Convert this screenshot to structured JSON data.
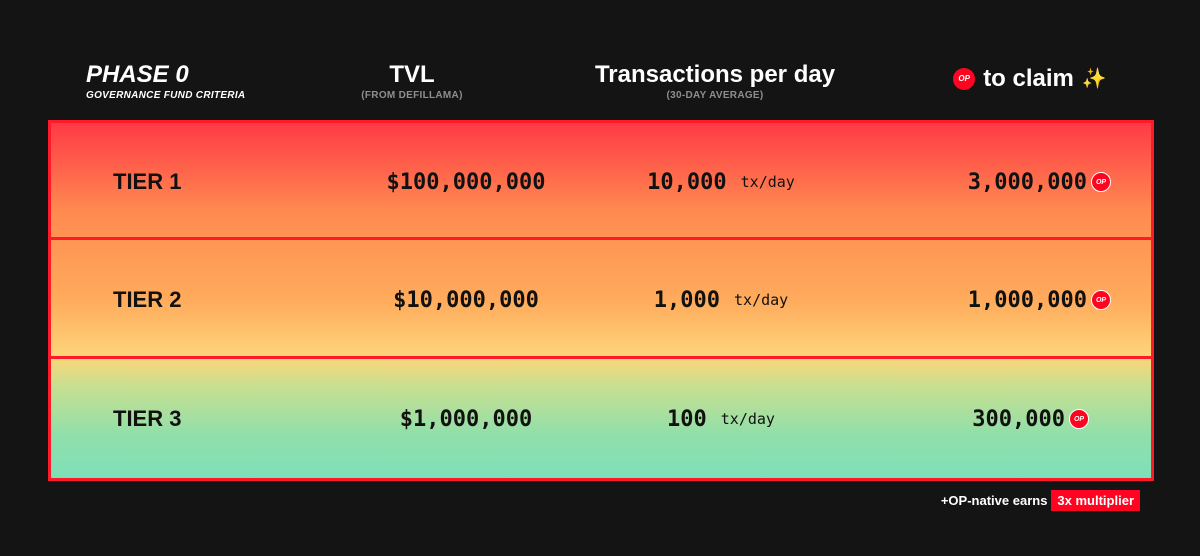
{
  "header": {
    "phase_title": "PHASE 0",
    "phase_subtitle": "GOVERNANCE FUND CRITERIA",
    "tvl_title": "TVL",
    "tvl_subtitle": "(FROM DEFILLAMA)",
    "tx_title": "Transactions per day",
    "tx_subtitle": "(30-DAY AVERAGE)",
    "claim_badge": "OP",
    "claim_title": "to claim",
    "claim_sparkle": "✨"
  },
  "tiers": [
    {
      "name": "TIER 1",
      "tvl": "$100,000,000",
      "tx": "10,000",
      "tx_unit": "tx/day",
      "claim": "3,000,000",
      "badge": "OP"
    },
    {
      "name": "TIER 2",
      "tvl": "$10,000,000",
      "tx": "1,000",
      "tx_unit": "tx/day",
      "claim": "1,000,000",
      "badge": "OP"
    },
    {
      "name": "TIER 3",
      "tvl": "$1,000,000",
      "tx": "100",
      "tx_unit": "tx/day",
      "claim": "300,000",
      "badge": "OP"
    }
  ],
  "footer": {
    "note": "+OP-native earns",
    "multiplier": "3x multiplier"
  },
  "colors": {
    "background": "#141414",
    "accent_red": "#ff0420",
    "gradient_top": "#ff3a46",
    "gradient_mid": "#ffab5c",
    "gradient_bottom": "#7ee0b9"
  }
}
